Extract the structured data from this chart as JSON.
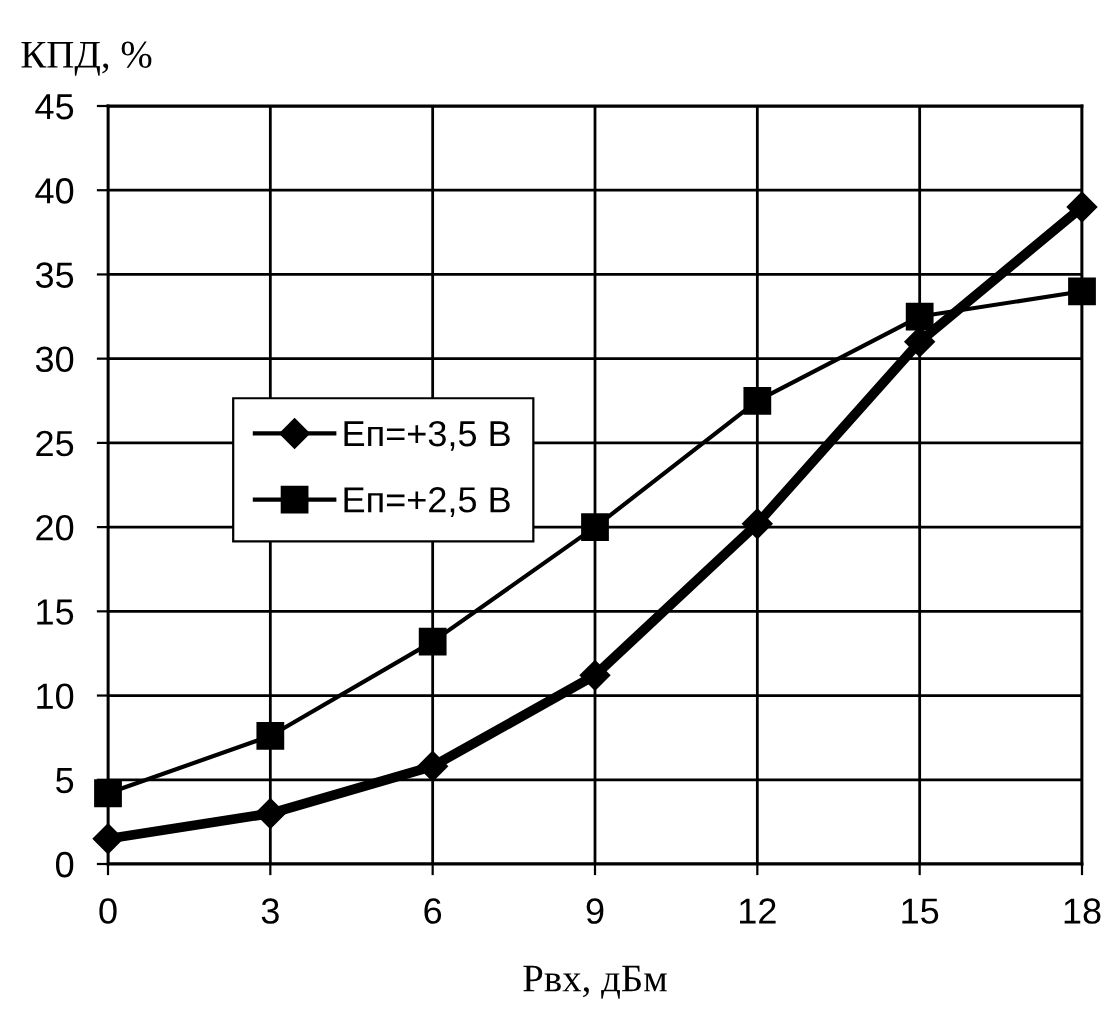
{
  "chart_data": {
    "type": "line",
    "xlabel": "Рвх, дБм",
    "ylabel": "КПД, %",
    "x": [
      0,
      3,
      6,
      9,
      12,
      15,
      18
    ],
    "series": [
      {
        "name": "Еп=+3,5 В",
        "color": "#000000",
        "marker": "diamond",
        "values": [
          1.5,
          3,
          5.8,
          11.2,
          20.2,
          31,
          39
        ]
      },
      {
        "name": "Еп=+2,5 В",
        "color": "#000000",
        "marker": "square",
        "values": [
          4.2,
          7.6,
          13.2,
          20,
          27.5,
          32.5,
          34
        ]
      }
    ],
    "xlim": [
      0,
      18
    ],
    "xticks": [
      0,
      3,
      6,
      9,
      12,
      15,
      18
    ],
    "ylim": [
      0,
      45
    ],
    "yticks": [
      0,
      5,
      10,
      15,
      20,
      25,
      30,
      35,
      40,
      45
    ],
    "grid": true,
    "legend": "left"
  }
}
